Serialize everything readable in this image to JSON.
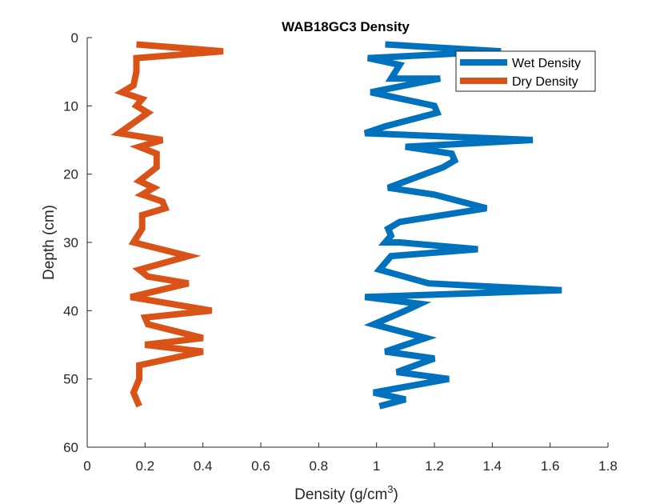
{
  "chart_data": {
    "type": "line",
    "title": "WAB18GC3 Density",
    "xlabel": "Density (g/cm",
    "xlabel_superscript": "3",
    "xlabel_suffix": ")",
    "ylabel": "Depth (cm)",
    "xlim": [
      0,
      1.8
    ],
    "ylim": [
      0,
      60
    ],
    "y_reversed": true,
    "x_ticks": [
      "0",
      "0.2",
      "0.4",
      "0.6",
      "0.8",
      "1",
      "1.2",
      "1.4",
      "1.6",
      "1.8"
    ],
    "y_ticks": [
      "0",
      "10",
      "20",
      "30",
      "40",
      "50",
      "60"
    ],
    "grid": false,
    "legend_position": "top-right",
    "series": [
      {
        "name": "Wet Density",
        "color": "#0072BD",
        "points": [
          [
            1.03,
            1
          ],
          [
            1.43,
            2
          ],
          [
            0.97,
            3
          ],
          [
            1.08,
            4
          ],
          [
            1.05,
            6
          ],
          [
            1.22,
            6
          ],
          [
            0.98,
            8
          ],
          [
            1.2,
            10
          ],
          [
            1.21,
            11
          ],
          [
            1.03,
            13
          ],
          [
            0.96,
            14
          ],
          [
            1.54,
            15
          ],
          [
            1.1,
            16
          ],
          [
            1.26,
            17
          ],
          [
            1.27,
            18
          ],
          [
            1.23,
            19
          ],
          [
            1.04,
            22
          ],
          [
            1.2,
            23
          ],
          [
            1.38,
            25
          ],
          [
            1.08,
            27
          ],
          [
            1.04,
            28
          ],
          [
            1.05,
            29
          ],
          [
            1.03,
            30
          ],
          [
            1.08,
            30
          ],
          [
            1.35,
            31
          ],
          [
            1.05,
            32
          ],
          [
            1.01,
            34
          ],
          [
            1.18,
            36
          ],
          [
            1.64,
            37
          ],
          [
            0.96,
            38
          ],
          [
            1.15,
            39
          ],
          [
            1.1,
            40
          ],
          [
            0.99,
            42
          ],
          [
            1.17,
            44
          ],
          [
            1.03,
            46
          ],
          [
            1.2,
            47
          ],
          [
            1.07,
            49
          ],
          [
            1.25,
            50
          ],
          [
            0.99,
            52
          ],
          [
            1.1,
            53
          ],
          [
            1.01,
            54
          ]
        ]
      },
      {
        "name": "Dry Density",
        "color": "#D95319",
        "points": [
          [
            0.17,
            1
          ],
          [
            0.47,
            2
          ],
          [
            0.17,
            3
          ],
          [
            0.17,
            5
          ],
          [
            0.16,
            7
          ],
          [
            0.12,
            8
          ],
          [
            0.19,
            9
          ],
          [
            0.17,
            10
          ],
          [
            0.21,
            11
          ],
          [
            0.11,
            14
          ],
          [
            0.26,
            15
          ],
          [
            0.18,
            16
          ],
          [
            0.24,
            17
          ],
          [
            0.24,
            19
          ],
          [
            0.18,
            21
          ],
          [
            0.23,
            22
          ],
          [
            0.19,
            23
          ],
          [
            0.26,
            24
          ],
          [
            0.27,
            25
          ],
          [
            0.19,
            26
          ],
          [
            0.19,
            28
          ],
          [
            0.16,
            30
          ],
          [
            0.35,
            32
          ],
          [
            0.18,
            34
          ],
          [
            0.21,
            35
          ],
          [
            0.35,
            36
          ],
          [
            0.15,
            38
          ],
          [
            0.43,
            40
          ],
          [
            0.2,
            41
          ],
          [
            0.21,
            42
          ],
          [
            0.4,
            44
          ],
          [
            0.2,
            45
          ],
          [
            0.4,
            46
          ],
          [
            0.18,
            48
          ],
          [
            0.18,
            50
          ],
          [
            0.16,
            52
          ],
          [
            0.18,
            54
          ]
        ]
      }
    ]
  }
}
